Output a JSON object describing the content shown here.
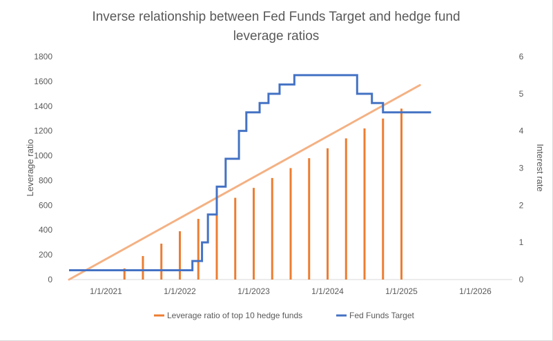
{
  "chart_data": {
    "type": "bar",
    "title_lines": [
      "Inverse relationship between Fed Funds Target and hedge fund",
      "leverage ratios"
    ],
    "ylabel": "Leverage ratio",
    "y2label": "Interest rate",
    "ylim": [
      0,
      1800
    ],
    "y2lim": [
      0,
      6
    ],
    "y_ticks": [
      "0",
      "200",
      "400",
      "600",
      "800",
      "1000",
      "1200",
      "1400",
      "1600",
      "1800"
    ],
    "y2_ticks": [
      "0",
      "1",
      "2",
      "3",
      "4",
      "5",
      "6"
    ],
    "x_ticks": [
      "1/1/2021",
      "1/1/2022",
      "1/1/2023",
      "1/1/2024",
      "1/1/2025",
      "1/1/2026"
    ],
    "x_range_years": [
      2020.5,
      2026.5
    ],
    "series": [
      {
        "name": "Leverage ratio of top 10 hedge funds",
        "kind": "bars+trendline",
        "color": "#ED7D31",
        "trend_color": "#F4B183",
        "x": [
          2021.25,
          2021.5,
          2021.75,
          2022.0,
          2022.25,
          2022.5,
          2022.75,
          2023.0,
          2023.25,
          2023.5,
          2023.75,
          2024.0,
          2024.25,
          2024.5,
          2024.75,
          2025.0
        ],
        "values": [
          90,
          190,
          290,
          390,
          490,
          590,
          660,
          740,
          820,
          900,
          980,
          1060,
          1140,
          1220,
          1300,
          1380
        ],
        "trend": [
          [
            2020.5,
            0
          ],
          [
            2025.25,
            1570
          ]
        ]
      },
      {
        "name": "Fed Funds Target",
        "kind": "step",
        "axis": "secondary",
        "color": "#4472C4",
        "x": [
          2020.5,
          2022.17,
          2022.3,
          2022.38,
          2022.5,
          2022.62,
          2022.8,
          2022.9,
          2023.08,
          2023.2,
          2023.35,
          2023.55,
          2024.4,
          2024.6,
          2024.75,
          2024.85,
          2025.0
        ],
        "values": [
          0.25,
          0.5,
          1.0,
          1.75,
          2.5,
          3.25,
          4.0,
          4.5,
          4.75,
          5.0,
          5.25,
          5.5,
          5.0,
          4.75,
          4.5,
          4.5,
          4.5
        ],
        "x_end": 2025.4
      }
    ],
    "legend_position": "bottom"
  }
}
